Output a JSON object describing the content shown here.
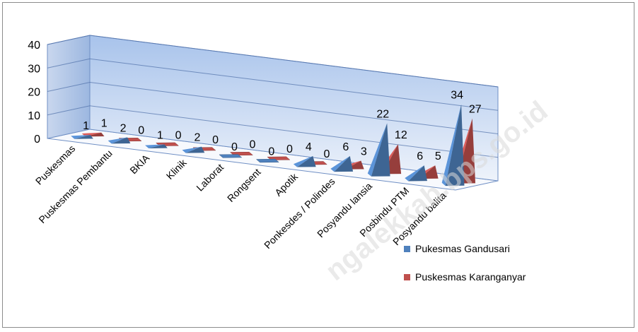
{
  "chart_data": {
    "type": "bar",
    "subtype": "3d-pyramid",
    "categories": [
      "Puskesmas",
      "Puskesmas Pembantu",
      "BKIA",
      "Klinik",
      "Laborat",
      "Rongsent",
      "Apotik",
      "Ponkesdes / Polindes",
      "Posyandu lansia",
      "Posbindu PTM",
      "Posyandu balita"
    ],
    "series": [
      {
        "name": "Pukesmas Gandusari",
        "values": [
          1,
          2,
          1,
          2,
          0,
          0,
          4,
          6,
          22,
          6,
          34
        ],
        "color": "#4f81bd"
      },
      {
        "name": "Puskesmas Karanganyar",
        "values": [
          1,
          0,
          0,
          0,
          0,
          0,
          0,
          3,
          12,
          5,
          27
        ],
        "color": "#c0504d"
      }
    ],
    "y_ticks": [
      "0",
      "10",
      "20",
      "30",
      "40"
    ],
    "ylim": [
      0,
      40
    ],
    "grid": true,
    "legend_position": "right-bottom",
    "watermark": "ngalekkab.bps.go.id"
  }
}
